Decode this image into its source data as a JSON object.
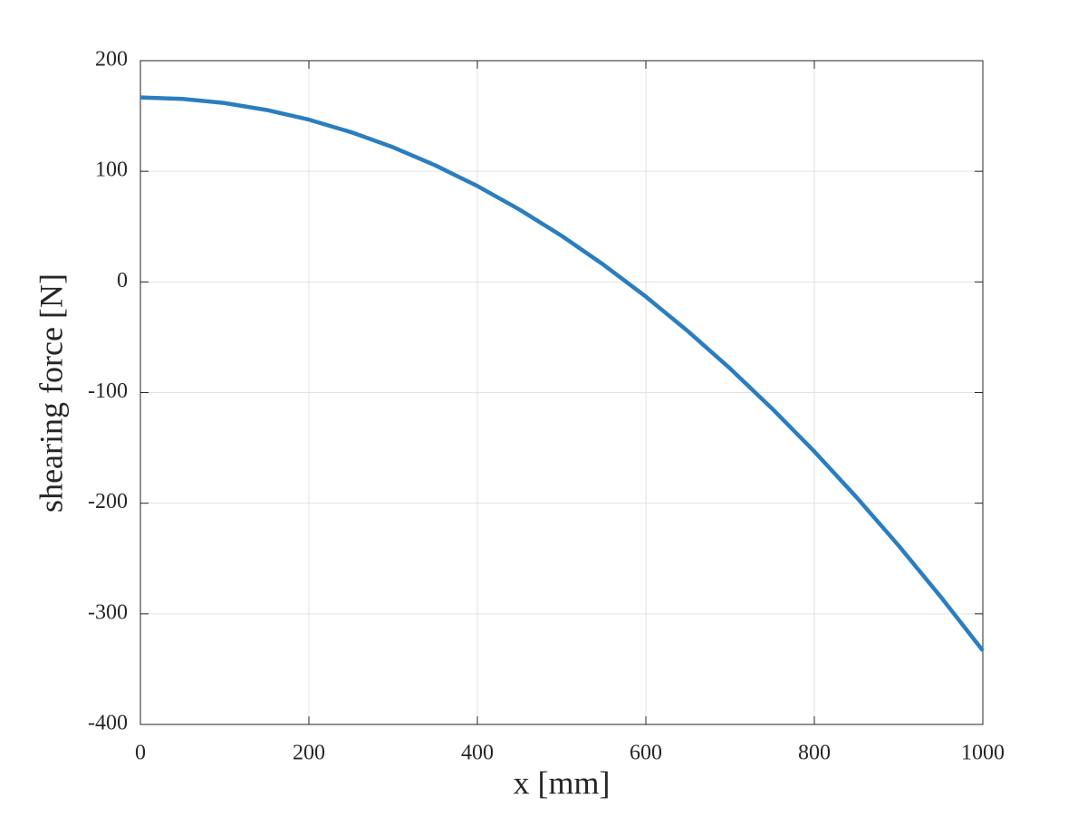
{
  "chart_data": {
    "type": "line",
    "xlabel": "x [mm]",
    "ylabel": "shearing force [N]",
    "x": [
      0,
      50,
      100,
      150,
      200,
      250,
      300,
      350,
      400,
      450,
      500,
      550,
      600,
      650,
      700,
      750,
      800,
      850,
      900,
      950,
      1000
    ],
    "series": [
      {
        "color": "#2a7ec0",
        "values": [
          166.7,
          165.4,
          161.7,
          155.4,
          146.7,
          135.4,
          121.7,
          105.4,
          86.7,
          65.4,
          41.7,
          15.4,
          -13.3,
          -44.6,
          -78.3,
          -114.6,
          -153.3,
          -194.6,
          -238.3,
          -284.6,
          -333.3
        ]
      }
    ],
    "xlim": [
      0,
      1000
    ],
    "xticks": [
      0,
      200,
      400,
      600,
      800,
      1000
    ],
    "ylim": [
      -400,
      200
    ],
    "yticks": [
      -400,
      -300,
      -200,
      -100,
      0,
      100,
      200
    ],
    "grid": true
  }
}
